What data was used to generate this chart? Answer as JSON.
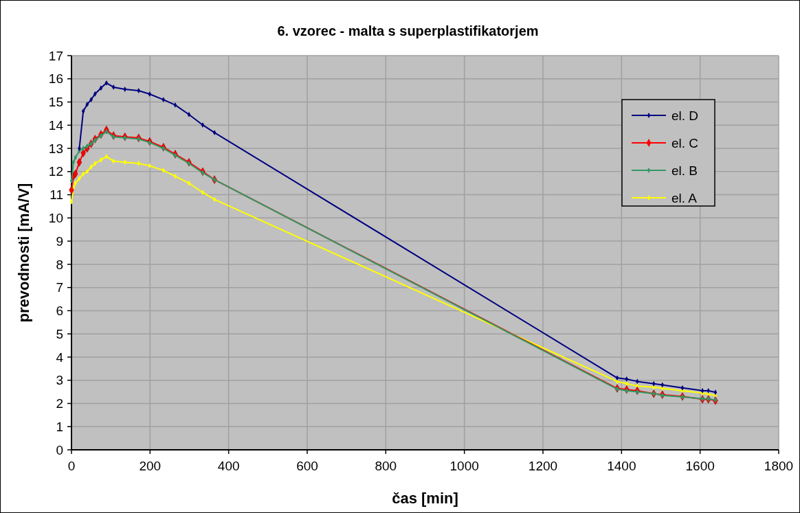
{
  "chart_data": {
    "type": "line",
    "title": "6. vzorec - malta s superplastifikatorjem",
    "xlabel": "čas [min]",
    "ylabel": "prevodnosti [mA/V]",
    "x": [
      0,
      5,
      10,
      20,
      30,
      40,
      50,
      60,
      75,
      89,
      107,
      136,
      171,
      199,
      234,
      264,
      299,
      334,
      364,
      1389,
      1413,
      1440,
      1482,
      1504,
      1555,
      1606,
      1621,
      1639
    ],
    "series": [
      {
        "name": "el. D",
        "color": "#000080",
        "values": [
          null,
          null,
          null,
          13.0,
          14.6,
          14.9,
          15.1,
          15.35,
          15.6,
          15.82,
          15.64,
          15.55,
          15.49,
          15.34,
          15.1,
          14.87,
          14.46,
          14.01,
          13.68,
          3.1,
          3.05,
          2.95,
          2.85,
          2.8,
          2.67,
          2.55,
          2.55,
          2.48
        ]
      },
      {
        "name": "el. C",
        "color": "#ff0000",
        "values": [
          11.2,
          11.8,
          11.9,
          12.4,
          12.8,
          13.0,
          13.2,
          13.4,
          13.6,
          13.8,
          13.55,
          13.5,
          13.45,
          13.3,
          13.05,
          12.75,
          12.4,
          12.0,
          11.65,
          2.65,
          2.6,
          2.55,
          2.42,
          2.38,
          2.3,
          2.18,
          2.18,
          2.12
        ]
      },
      {
        "name": "el. B",
        "color": "#339966",
        "values": [
          11.6,
          12.4,
          12.6,
          12.9,
          13.0,
          13.1,
          13.2,
          13.35,
          13.55,
          13.72,
          13.5,
          13.45,
          13.4,
          13.25,
          13.0,
          12.7,
          12.35,
          11.95,
          11.65,
          2.62,
          2.55,
          2.5,
          2.42,
          2.35,
          2.28,
          2.2,
          2.2,
          2.15
        ]
      },
      {
        "name": "el. A",
        "color": "#ffff00",
        "values": [
          10.7,
          11.3,
          11.5,
          11.7,
          11.9,
          12.0,
          12.2,
          12.35,
          12.5,
          12.65,
          12.45,
          12.4,
          12.35,
          12.25,
          12.05,
          11.8,
          11.5,
          11.1,
          10.8,
          2.95,
          2.85,
          2.75,
          2.7,
          2.65,
          2.55,
          2.45,
          2.4,
          2.35
        ]
      }
    ],
    "xlim": [
      0,
      1800
    ],
    "xticks": [
      0,
      200,
      400,
      600,
      800,
      1000,
      1200,
      1400,
      1600,
      1800
    ],
    "ylim": [
      0,
      17
    ],
    "yticks": [
      0,
      1,
      2,
      3,
      4,
      5,
      6,
      7,
      8,
      9,
      10,
      11,
      12,
      13,
      14,
      15,
      16,
      17
    ],
    "grid": true,
    "legend": "top right",
    "marker": "diamond",
    "line_style": "solid"
  }
}
